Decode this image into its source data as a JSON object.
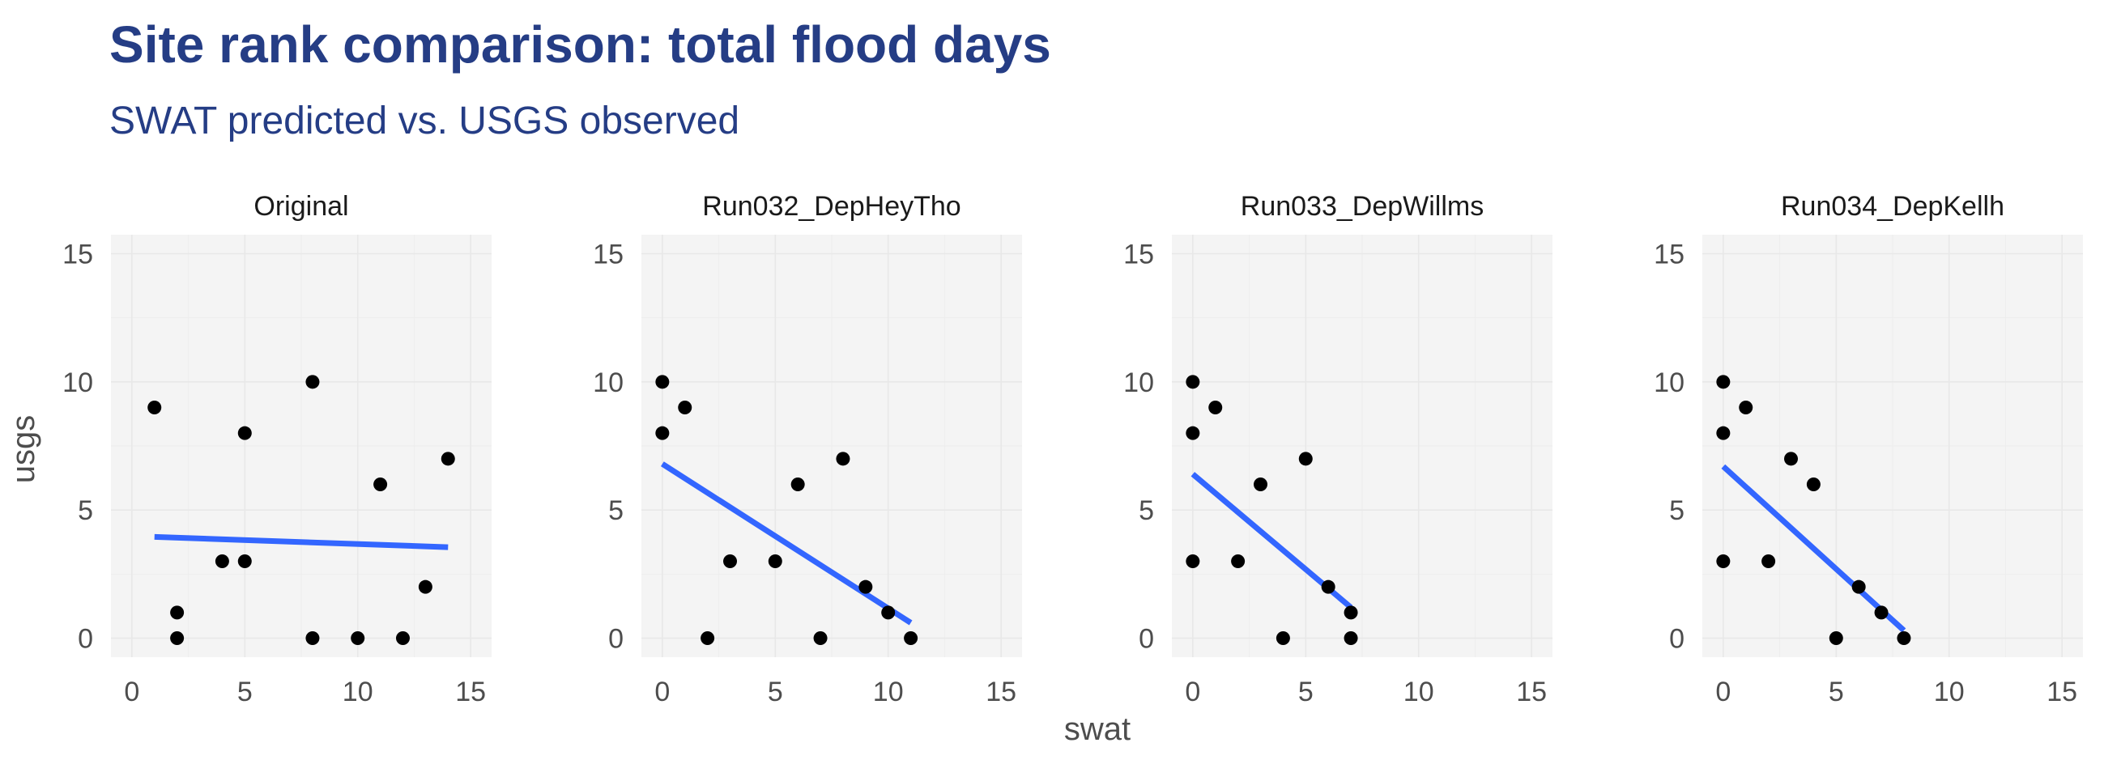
{
  "title": "Site rank comparison: total flood days",
  "subtitle": "SWAT predicted vs. USGS observed",
  "chart_data": {
    "type": "scatter",
    "xlabel": "swat",
    "ylabel": "usgs",
    "xlim": [
      0,
      15
    ],
    "ylim": [
      0,
      15
    ],
    "x_ticks": [
      0,
      5,
      10,
      15
    ],
    "y_ticks": [
      0,
      5,
      10,
      15
    ],
    "grid": true,
    "colors": {
      "points": "#000000",
      "fit_line": "#3366ff",
      "panel_bg": "#f4f4f4",
      "grid": "#e8e8e8",
      "title": "#253d85"
    },
    "panels": [
      {
        "name": "Original",
        "points": [
          [
            1,
            9
          ],
          [
            2,
            1
          ],
          [
            2,
            0
          ],
          [
            4,
            3
          ],
          [
            5,
            8
          ],
          [
            5,
            3
          ],
          [
            8,
            10
          ],
          [
            8,
            0
          ],
          [
            10,
            0
          ],
          [
            11,
            6
          ],
          [
            12,
            0
          ],
          [
            13,
            2
          ],
          [
            14,
            7
          ]
        ],
        "fit": {
          "x": [
            1,
            14
          ],
          "y": [
            3.95,
            3.55
          ]
        }
      },
      {
        "name": "Run032_DepHeyTho",
        "points": [
          [
            0,
            10
          ],
          [
            0,
            8
          ],
          [
            1,
            9
          ],
          [
            2,
            0
          ],
          [
            3,
            3
          ],
          [
            5,
            3
          ],
          [
            6,
            6
          ],
          [
            7,
            0
          ],
          [
            8,
            7
          ],
          [
            9,
            2
          ],
          [
            10,
            1
          ],
          [
            11,
            0
          ]
        ],
        "fit": {
          "x": [
            0,
            11
          ],
          "y": [
            6.8,
            0.6
          ]
        }
      },
      {
        "name": "Run033_DepWillms",
        "points": [
          [
            0,
            10
          ],
          [
            0,
            8
          ],
          [
            0,
            3
          ],
          [
            1,
            9
          ],
          [
            2,
            3
          ],
          [
            3,
            6
          ],
          [
            4,
            0
          ],
          [
            5,
            7
          ],
          [
            6,
            2
          ],
          [
            7,
            1
          ],
          [
            7,
            0
          ]
        ],
        "fit": {
          "x": [
            0,
            7
          ],
          "y": [
            6.4,
            1.2
          ]
        }
      },
      {
        "name": "Run034_DepKellh",
        "points": [
          [
            0,
            10
          ],
          [
            0,
            8
          ],
          [
            0,
            3
          ],
          [
            1,
            9
          ],
          [
            2,
            3
          ],
          [
            3,
            7
          ],
          [
            4,
            6
          ],
          [
            5,
            0
          ],
          [
            6,
            2
          ],
          [
            7,
            1
          ],
          [
            8,
            0
          ]
        ],
        "fit": {
          "x": [
            0,
            8
          ],
          "y": [
            6.7,
            0.3
          ]
        }
      }
    ]
  }
}
